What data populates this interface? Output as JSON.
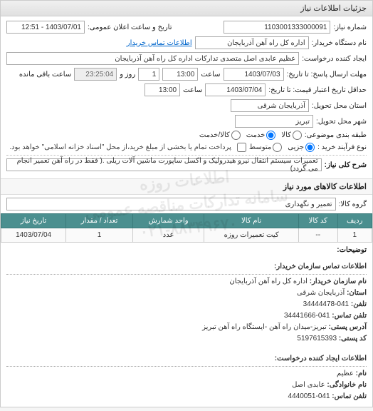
{
  "header": {
    "title": "جزئیات اطلاعات نیاز"
  },
  "form": {
    "req_no_label": "شماره نیاز:",
    "req_no": "1103001333000091",
    "announce_label": "تاریخ و ساعت اعلان عمومی:",
    "announce_value": "1403/07/01 - 12:51",
    "buyer_org_label": "نام دستگاه خریدار:",
    "buyer_org": "اداره کل راه آهن آذربایجان",
    "contact_link": "اطلاعات تماس خریدار",
    "creator_label": "ایجاد کننده درخواست:",
    "creator": "عظیم عابدی اصل متصدی تدارکات اداره کل راه آهن آذربایجان",
    "deadline_label": "مهلت ارسال پاسخ: تا تاریخ:",
    "deadline_date": "1403/07/03",
    "time_label": "ساعت",
    "deadline_time": "13:00",
    "days_between": "1",
    "days_and": "روز و",
    "remain_time": "23:25:04",
    "remain_label": "ساعت باقی مانده",
    "quote_deadline_label": "حداقل تاریخ اعتبار قیمت: تا تاریخ:",
    "quote_date": "1403/07/04",
    "quote_time": "13:00",
    "province_label": "استان محل تحویل:",
    "province": "آذربایجان شرقی",
    "city_label": "شهر محل تحویل:",
    "city": "تبریز",
    "category_label": "طبقه بندی موضوعی:",
    "cat_goods": "کالا",
    "cat_service": "خدمت",
    "cat_both": "کالا/خدمت",
    "purchase_type_label": "نوع فرآیند خرید :",
    "pt_small": "جزیی",
    "pt_medium": "متوسط",
    "pt_note": "پرداخت تمام یا بخشی از مبلغ خرید،از محل \"اسناد خزانه اسلامی\" خواهد بود.",
    "desc_label": "شرح کلی نیاز:",
    "desc_value": "تعمیرات سیستم انتقال نیرو هیدرولیک و اکسل ساپورت ماشین آلات ریلی .( فقط در راه آهن تعمیر انجام می گردد)"
  },
  "goods_section": {
    "title": "اطلاعات کالاهای مورد نیاز",
    "group_label": "گروه کالا:",
    "group_value": "تعمیر و نگهداری"
  },
  "goods_table": {
    "header_bg": "#4b8f8f",
    "columns": [
      "ردیف",
      "کد کالا",
      "نام کالا",
      "واحد شمارش",
      "تعداد / مقدار",
      "تاریخ نیاز"
    ],
    "rows": [
      [
        "1",
        "--",
        "کیت تعمیرات روزه",
        "عدد",
        "1",
        "1403/07/04"
      ]
    ]
  },
  "buyer_contact": {
    "title": "اطلاعات تماس سازمان خریدار:",
    "org_label": "نام سازمان خریدار:",
    "org": "اداره کل راه آهن آذربایجان",
    "prov_label": "استان:",
    "prov": "آذربایجان شرقی",
    "tel_label": "تلفن:",
    "tel": "041-34444478",
    "fax_label": "تلفن تماس:",
    "fax": "041-34441666",
    "addr_label": "آدرس پستی:",
    "addr": "تبریز-میدان راه آهن -ایستگاه راه آهن تبریز",
    "post_label": "کد پستی:",
    "post": "5197615393"
  },
  "creator_contact": {
    "title": "اطلاعات ایجاد کننده درخواست:",
    "fname_label": "نام:",
    "fname": "عظیم",
    "lname_label": "نام خانوادگی:",
    "lname": "عابدی اصل",
    "tel_label": "تلفن تماس:",
    "tel": "041-4440051"
  },
  "misc": {
    "notes_label": "توضیحات:",
    "watermark_l1": "اطلاعات روزه",
    "watermark_l2": "سامانه تدارکات مناقصه عمومی",
    "watermark_phone": "۰۲۱-۸۸۳۴۹۶۷۰"
  }
}
